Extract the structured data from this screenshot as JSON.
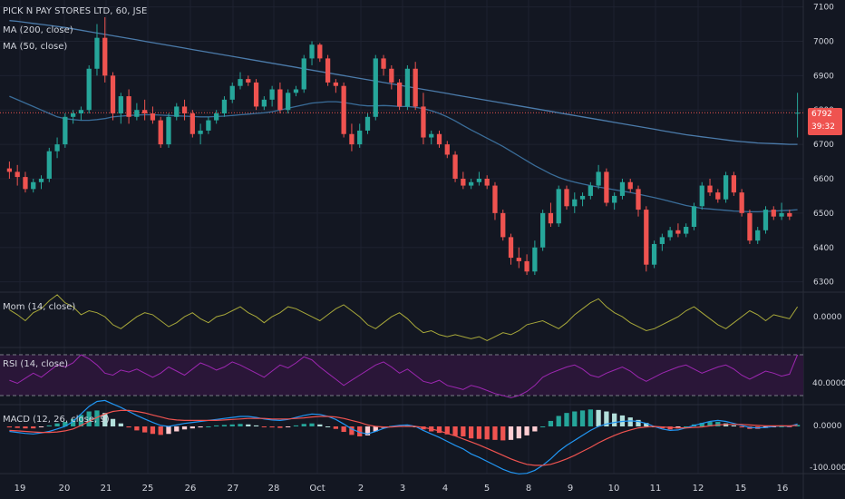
{
  "header": {
    "symbol": "PICK N PAY STORES LTD, 60, JSE",
    "ma200": "MA (200, close)",
    "ma50": "MA (50, close)"
  },
  "colors": {
    "background": "#131722",
    "grid": "#1e2230",
    "up": "#26a69a",
    "down": "#ef5350",
    "ma200": "#4b7baa",
    "ma50": "#3a6d99",
    "mom": "#a8a83a",
    "rsi": "#9c27b0",
    "rsi_band": "#2a1638",
    "macd": "#2196f3",
    "signal": "#ef5350",
    "axis_text": "#d1d4dc"
  },
  "price_axis": {
    "ticks": [
      "7100",
      "7000",
      "6900",
      "6800",
      "6700",
      "6600",
      "6500",
      "6400",
      "6300"
    ]
  },
  "last_price_tag": {
    "price": "6792",
    "countdown": "39:32"
  },
  "x_axis": {
    "labels": [
      "19",
      "20",
      "21",
      "25",
      "26",
      "27",
      "28",
      "Oct",
      "2",
      "3",
      "4",
      "5",
      "8",
      "9",
      "10",
      "11",
      "12",
      "15",
      "16"
    ]
  },
  "indicators": {
    "mom": {
      "title": "Mom (14, close)",
      "value": "0.0000"
    },
    "rsi": {
      "title": "RSI (14, close)",
      "value": "40.0000"
    },
    "macd": {
      "title": "MACD (12, 26, close, 9)",
      "value_zero": "0.0000",
      "value_neg": "-100.0000"
    }
  },
  "chart_data": {
    "type": "candlestick",
    "title": "PICK N PAY STORES LTD, 60, JSE",
    "ylim": [
      6270,
      7120
    ],
    "candles": [
      [
        6630,
        6650,
        6600,
        6620
      ],
      [
        6620,
        6640,
        6580,
        6605
      ],
      [
        6605,
        6620,
        6560,
        6570
      ],
      [
        6570,
        6600,
        6560,
        6590
      ],
      [
        6590,
        6610,
        6570,
        6600
      ],
      [
        6600,
        6690,
        6590,
        6680
      ],
      [
        6680,
        6720,
        6660,
        6700
      ],
      [
        6700,
        6790,
        6690,
        6780
      ],
      [
        6780,
        6800,
        6760,
        6790
      ],
      [
        6790,
        6810,
        6770,
        6800
      ],
      [
        6800,
        6930,
        6790,
        6920
      ],
      [
        6920,
        7050,
        6900,
        7010
      ],
      [
        7010,
        7070,
        6880,
        6900
      ],
      [
        6900,
        6910,
        6770,
        6790
      ],
      [
        6790,
        6850,
        6760,
        6840
      ],
      [
        6840,
        6860,
        6760,
        6780
      ],
      [
        6780,
        6820,
        6770,
        6800
      ],
      [
        6800,
        6830,
        6770,
        6790
      ],
      [
        6790,
        6810,
        6760,
        6770
      ],
      [
        6770,
        6780,
        6690,
        6700
      ],
      [
        6700,
        6790,
        6690,
        6780
      ],
      [
        6780,
        6820,
        6770,
        6810
      ],
      [
        6810,
        6830,
        6770,
        6790
      ],
      [
        6790,
        6800,
        6720,
        6730
      ],
      [
        6730,
        6760,
        6700,
        6740
      ],
      [
        6740,
        6780,
        6730,
        6770
      ],
      [
        6770,
        6800,
        6760,
        6790
      ],
      [
        6790,
        6840,
        6780,
        6830
      ],
      [
        6830,
        6880,
        6820,
        6870
      ],
      [
        6870,
        6910,
        6860,
        6890
      ],
      [
        6890,
        6900,
        6870,
        6880
      ],
      [
        6880,
        6890,
        6800,
        6810
      ],
      [
        6810,
        6840,
        6800,
        6830
      ],
      [
        6830,
        6870,
        6810,
        6860
      ],
      [
        6860,
        6880,
        6790,
        6800
      ],
      [
        6800,
        6860,
        6790,
        6850
      ],
      [
        6850,
        6870,
        6840,
        6860
      ],
      [
        6860,
        6960,
        6850,
        6950
      ],
      [
        6950,
        7000,
        6930,
        6990
      ],
      [
        6990,
        6995,
        6940,
        6950
      ],
      [
        6950,
        6960,
        6870,
        6880
      ],
      [
        6880,
        6890,
        6850,
        6870
      ],
      [
        6870,
        6880,
        6720,
        6730
      ],
      [
        6730,
        6760,
        6680,
        6700
      ],
      [
        6700,
        6760,
        6690,
        6740
      ],
      [
        6740,
        6790,
        6730,
        6780
      ],
      [
        6780,
        6960,
        6770,
        6950
      ],
      [
        6950,
        6960,
        6900,
        6920
      ],
      [
        6920,
        6930,
        6860,
        6880
      ],
      [
        6880,
        6890,
        6800,
        6810
      ],
      [
        6810,
        6930,
        6800,
        6920
      ],
      [
        6920,
        6940,
        6800,
        6810
      ],
      [
        6810,
        6850,
        6700,
        6720
      ],
      [
        6720,
        6740,
        6700,
        6730
      ],
      [
        6730,
        6740,
        6690,
        6700
      ],
      [
        6700,
        6710,
        6660,
        6670
      ],
      [
        6670,
        6680,
        6590,
        6600
      ],
      [
        6600,
        6620,
        6570,
        6580
      ],
      [
        6580,
        6600,
        6570,
        6590
      ],
      [
        6590,
        6620,
        6580,
        6600
      ],
      [
        6600,
        6610,
        6570,
        6580
      ],
      [
        6580,
        6590,
        6480,
        6500
      ],
      [
        6500,
        6510,
        6420,
        6430
      ],
      [
        6430,
        6440,
        6350,
        6370
      ],
      [
        6370,
        6400,
        6340,
        6360
      ],
      [
        6360,
        6380,
        6320,
        6330
      ],
      [
        6330,
        6420,
        6320,
        6400
      ],
      [
        6400,
        6510,
        6390,
        6500
      ],
      [
        6500,
        6530,
        6460,
        6470
      ],
      [
        6470,
        6580,
        6460,
        6570
      ],
      [
        6570,
        6580,
        6510,
        6520
      ],
      [
        6520,
        6560,
        6500,
        6540
      ],
      [
        6540,
        6560,
        6520,
        6550
      ],
      [
        6550,
        6590,
        6540,
        6580
      ],
      [
        6580,
        6640,
        6570,
        6620
      ],
      [
        6620,
        6630,
        6520,
        6530
      ],
      [
        6530,
        6560,
        6510,
        6550
      ],
      [
        6550,
        6600,
        6540,
        6590
      ],
      [
        6590,
        6600,
        6560,
        6570
      ],
      [
        6570,
        6580,
        6490,
        6510
      ],
      [
        6510,
        6520,
        6330,
        6350
      ],
      [
        6350,
        6420,
        6340,
        6410
      ],
      [
        6410,
        6440,
        6390,
        6430
      ],
      [
        6430,
        6460,
        6420,
        6450
      ],
      [
        6450,
        6470,
        6430,
        6440
      ],
      [
        6440,
        6470,
        6430,
        6460
      ],
      [
        6460,
        6530,
        6450,
        6520
      ],
      [
        6520,
        6590,
        6510,
        6580
      ],
      [
        6580,
        6600,
        6550,
        6560
      ],
      [
        6560,
        6570,
        6530,
        6540
      ],
      [
        6540,
        6620,
        6530,
        6610
      ],
      [
        6610,
        6620,
        6550,
        6560
      ],
      [
        6560,
        6570,
        6490,
        6500
      ],
      [
        6500,
        6510,
        6410,
        6420
      ],
      [
        6420,
        6460,
        6410,
        6450
      ],
      [
        6450,
        6520,
        6440,
        6510
      ],
      [
        6510,
        6520,
        6480,
        6490
      ],
      [
        6490,
        6530,
        6480,
        6500
      ],
      [
        6500,
        6510,
        6480,
        6490
      ],
      [
        6790,
        6850,
        6720,
        6792
      ]
    ],
    "ma200": [
      7060,
      7058,
      7055,
      7052,
      7049,
      7046,
      7043,
      7040,
      7036,
      7032,
      7028,
      7024,
      7020,
      7016,
      7012,
      7008,
      7004,
      7000,
      6996,
      6992,
      6988,
      6984,
      6980,
      6976,
      6972,
      6968,
      6964,
      6960,
      6956,
      6952,
      6948,
      6944,
      6940,
      6936,
      6932,
      6928,
      6924,
      6920,
      6916,
      6912,
      6908,
      6904,
      6900,
      6896,
      6892,
      6888,
      6884,
      6880,
      6876,
      6872,
      6868,
      6864,
      6860,
      6856,
      6852,
      6848,
      6844,
      6840,
      6836,
      6832,
      6828,
      6824,
      6820,
      6816,
      6812,
      6808,
      6804,
      6800,
      6796,
      6792,
      6788,
      6784,
      6780,
      6776,
      6772,
      6768,
      6764,
      6760,
      6756,
      6752,
      6748,
      6744,
      6740,
      6736,
      6732,
      6728,
      6725,
      6722,
      6719,
      6716,
      6713,
      6710,
      6708,
      6706,
      6704,
      6703,
      6702,
      6701,
      6700,
      6700
    ],
    "ma50": [
      6840,
      6830,
      6820,
      6810,
      6800,
      6790,
      6780,
      6775,
      6772,
      6770,
      6770,
      6772,
      6775,
      6780,
      6782,
      6784,
      6785,
      6786,
      6786,
      6785,
      6784,
      6783,
      6782,
      6781,
      6780,
      6780,
      6781,
      6782,
      6784,
      6786,
      6788,
      6790,
      6792,
      6795,
      6800,
      6805,
      6810,
      6815,
      6820,
      6822,
      6824,
      6824,
      6822,
      6818,
      6814,
      6812,
      6812,
      6813,
      6812,
      6810,
      6810,
      6808,
      6804,
      6798,
      6790,
      6780,
      6768,
      6755,
      6742,
      6730,
      6718,
      6706,
      6694,
      6680,
      6666,
      6652,
      6638,
      6626,
      6614,
      6604,
      6596,
      6590,
      6585,
      6580,
      6576,
      6572,
      6568,
      6564,
      6560,
      6555,
      6550,
      6545,
      6540,
      6534,
      6528,
      6522,
      6518,
      6514,
      6512,
      6510,
      6508,
      6506,
      6505,
      6504,
      6504,
      6505,
      6506,
      6507,
      6508,
      6510
    ],
    "mom": [
      0.45,
      0.2,
      -0.1,
      0.3,
      0.5,
      0.9,
      1.2,
      0.8,
      0.6,
      0.2,
      0.4,
      0.3,
      0.1,
      -0.3,
      -0.5,
      -0.2,
      0.1,
      0.3,
      0.2,
      -0.1,
      -0.4,
      -0.2,
      0.1,
      0.3,
      0.0,
      -0.2,
      0.1,
      0.2,
      0.4,
      0.6,
      0.3,
      0.1,
      -0.2,
      0.1,
      0.3,
      0.6,
      0.5,
      0.3,
      0.1,
      -0.1,
      0.2,
      0.5,
      0.7,
      0.4,
      0.1,
      -0.3,
      -0.5,
      -0.2,
      0.1,
      0.3,
      0.0,
      -0.4,
      -0.7,
      -0.6,
      -0.8,
      -0.9,
      -0.8,
      -0.9,
      -1.0,
      -0.9,
      -1.1,
      -0.9,
      -0.7,
      -0.8,
      -0.6,
      -0.3,
      -0.2,
      -0.1,
      -0.3,
      -0.5,
      -0.2,
      0.2,
      0.5,
      0.8,
      1.0,
      0.6,
      0.3,
      0.1,
      -0.2,
      -0.4,
      -0.6,
      -0.5,
      -0.3,
      -0.1,
      0.1,
      0.4,
      0.6,
      0.3,
      0.0,
      -0.3,
      -0.5,
      -0.2,
      0.1,
      0.4,
      0.2,
      -0.1,
      0.2,
      0.1,
      0.0,
      0.6
    ],
    "rsi": [
      45,
      42,
      47,
      52,
      48,
      54,
      60,
      58,
      62,
      70,
      66,
      60,
      52,
      50,
      55,
      53,
      56,
      52,
      48,
      52,
      58,
      54,
      50,
      56,
      62,
      59,
      55,
      58,
      63,
      60,
      56,
      52,
      48,
      54,
      60,
      57,
      62,
      68,
      65,
      58,
      52,
      46,
      40,
      45,
      50,
      55,
      60,
      63,
      58,
      52,
      56,
      50,
      44,
      42,
      45,
      40,
      38,
      36,
      40,
      38,
      35,
      32,
      30,
      28,
      30,
      34,
      40,
      48,
      52,
      55,
      58,
      60,
      56,
      50,
      48,
      52,
      55,
      58,
      54,
      48,
      44,
      48,
      52,
      55,
      58,
      60,
      56,
      52,
      55,
      58,
      60,
      56,
      50,
      46,
      50,
      54,
      52,
      49,
      51,
      70
    ],
    "macd": [
      -10,
      -12,
      -14,
      -15,
      -13,
      -10,
      -5,
      0,
      10,
      25,
      40,
      50,
      52,
      45,
      38,
      30,
      22,
      15,
      8,
      2,
      0,
      3,
      6,
      8,
      10,
      12,
      14,
      16,
      18,
      20,
      20,
      18,
      15,
      13,
      12,
      14,
      18,
      22,
      25,
      24,
      20,
      14,
      5,
      -5,
      -12,
      -15,
      -10,
      -4,
      0,
      2,
      3,
      0,
      -8,
      -15,
      -22,
      -30,
      -38,
      -45,
      -55,
      -62,
      -70,
      -78,
      -86,
      -92,
      -95,
      -94,
      -88,
      -78,
      -65,
      -50,
      -38,
      -28,
      -18,
      -8,
      0,
      5,
      8,
      10,
      11,
      10,
      6,
      0,
      -5,
      -8,
      -7,
      -3,
      2,
      6,
      10,
      12,
      10,
      6,
      2,
      -2,
      -3,
      -2,
      0,
      1,
      0,
      5
    ],
    "signal": [
      -8,
      -9,
      -10,
      -11,
      -12,
      -12,
      -11,
      -9,
      -5,
      2,
      10,
      18,
      25,
      30,
      32,
      32,
      30,
      27,
      23,
      19,
      15,
      13,
      12,
      12,
      12,
      12,
      12,
      13,
      14,
      15,
      16,
      16,
      16,
      15,
      15,
      15,
      16,
      17,
      19,
      20,
      20,
      19,
      16,
      12,
      8,
      3,
      0,
      -1,
      -1,
      0,
      0,
      0,
      -2,
      -5,
      -9,
      -14,
      -19,
      -25,
      -31,
      -37,
      -44,
      -51,
      -58,
      -65,
      -71,
      -76,
      -78,
      -78,
      -76,
      -71,
      -65,
      -58,
      -50,
      -42,
      -33,
      -25,
      -18,
      -12,
      -7,
      -3,
      -1,
      0,
      -1,
      -2,
      -3,
      -3,
      -2,
      -1,
      1,
      3,
      4,
      4,
      4,
      3,
      2,
      1,
      1,
      1,
      1,
      2
    ]
  }
}
